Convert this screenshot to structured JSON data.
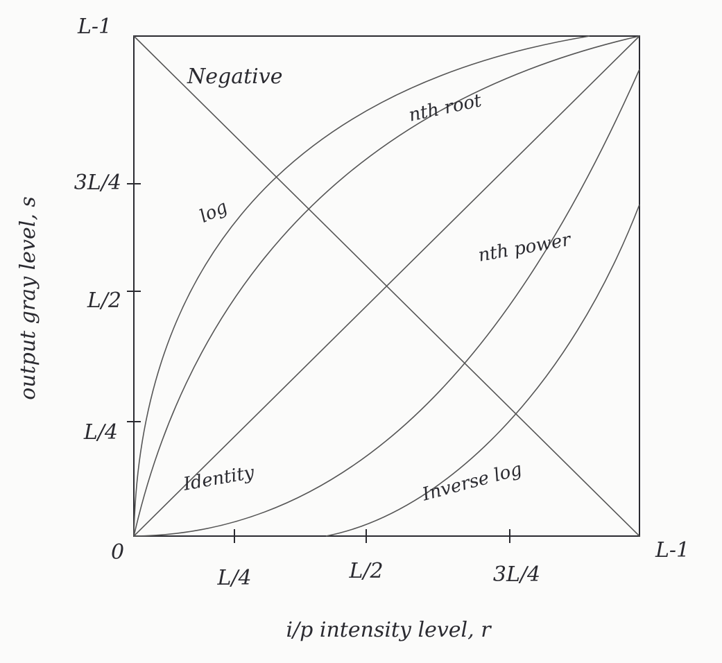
{
  "corner_labels": {
    "y_max": "L-1",
    "origin": "0",
    "x_max": "L-1"
  },
  "axes": {
    "y": {
      "label": "output gray level, s",
      "ticks": [
        "3L/4",
        "L/2",
        "L/4"
      ]
    },
    "x": {
      "label": "i/p intensity level, r",
      "ticks": [
        "L/4",
        "L/2",
        "3L/4"
      ]
    }
  },
  "curves": [
    {
      "label": "Negative"
    },
    {
      "label": "nth root"
    },
    {
      "label": "log"
    },
    {
      "label": "nth power"
    },
    {
      "label": "Identity"
    },
    {
      "label": "Inverse log"
    }
  ]
}
